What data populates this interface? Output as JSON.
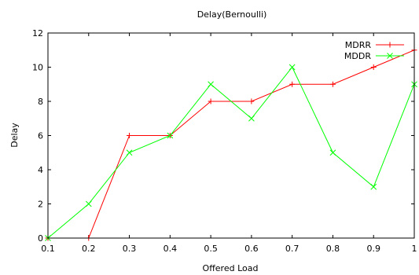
{
  "chart_data": {
    "type": "line",
    "title": "Delay(Bernoulli)",
    "xlabel": "Offered Load",
    "ylabel": "Delay",
    "x": [
      0.1,
      0.2,
      0.3,
      0.4,
      0.5,
      0.6,
      0.7,
      0.8,
      0.9,
      1
    ],
    "x_tick_labels": [
      "0.1",
      "0.2",
      "0.3",
      "0.4",
      "0.5",
      "0.6",
      "0.7",
      "0.8",
      "0.9",
      "1"
    ],
    "y_tick_labels": [
      "0",
      "2",
      "4",
      "6",
      "8",
      "10",
      "12"
    ],
    "xlim": [
      0.1,
      1
    ],
    "ylim": [
      0,
      12
    ],
    "grid": false,
    "legend_position": "top-right",
    "series": [
      {
        "name": "MDRR",
        "color": "#ff0000",
        "marker": "plus",
        "values": [
          0,
          0,
          6,
          6,
          8,
          8,
          9,
          9,
          10,
          11
        ]
      },
      {
        "name": "MDDR",
        "color": "#00ff00",
        "marker": "x",
        "values": [
          0,
          2,
          5,
          6,
          9,
          7,
          10,
          5,
          3,
          9
        ]
      }
    ]
  }
}
